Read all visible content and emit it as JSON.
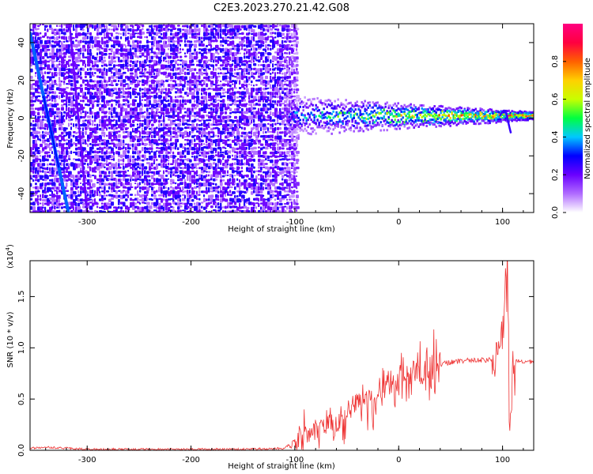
{
  "chart_data": [
    {
      "type": "heatmap",
      "title": "C2E3.2023.270.21.42.G08",
      "xlabel": "Height of straight line (km)",
      "ylabel": "Frequency (Hz)",
      "xlim": [
        -355,
        130
      ],
      "ylim": [
        -50,
        50
      ],
      "xticks": [
        -300,
        -200,
        -100,
        0,
        100
      ],
      "yticks": [
        -40,
        -20,
        0,
        20,
        40
      ],
      "grid": false,
      "colorbar": {
        "label": "Normalized spectral amplitude",
        "range": [
          0,
          1
        ],
        "ticks": [
          0.0,
          0.2,
          0.4,
          0.6,
          0.8
        ],
        "colormap": [
          "#ffffff",
          "#b06bff",
          "#6a00ff",
          "#0000ff",
          "#00c8ff",
          "#00ff40",
          "#c8ff00",
          "#ffd000",
          "#ff6000",
          "#ff0040",
          "#ff0080"
        ]
      },
      "features": [
        {
          "name": "noise_region",
          "x_range": [
            -355,
            -98
          ],
          "freq_range": [
            -50,
            50
          ],
          "amplitude": 0.2
        },
        {
          "name": "drift_line_1",
          "x": [
            -355,
            -318
          ],
          "freq": [
            45,
            -50
          ],
          "amplitude": 0.3
        },
        {
          "name": "drift_line_2",
          "x": [
            -317,
            -300
          ],
          "freq": [
            50,
            -50
          ],
          "amplitude": 0.15
        },
        {
          "name": "carrier",
          "x_range": [
            -108,
            130
          ],
          "freq": 1,
          "amplitude_start": 0.3,
          "amplitude_end": 0.85
        },
        {
          "name": "carrier_wiggle",
          "x": 102,
          "freq": [
            7,
            -8
          ]
        }
      ]
    },
    {
      "type": "line",
      "xlabel": "Height of straight line (km)",
      "ylabel": "SNR (10 * v/v)",
      "yscale_label": "(x10",
      "yscale_exp": "4",
      "yscale_suffix": ")",
      "xlim": [
        -355,
        130
      ],
      "ylim": [
        0,
        1.85
      ],
      "xticks": [
        -300,
        -200,
        -100,
        0,
        100
      ],
      "yticks": [
        0.0,
        0.5,
        1.0,
        1.5
      ],
      "grid": false,
      "series": [
        {
          "color": "#ee3333",
          "x": [
            -355,
            -340,
            -320,
            -300,
            -250,
            -200,
            -150,
            -110,
            -100,
            -90,
            -80,
            -70,
            -60,
            -50,
            -40,
            -30,
            -20,
            -10,
            0,
            10,
            20,
            30,
            40,
            50,
            60,
            70,
            80,
            90,
            95,
            100,
            103,
            105,
            107,
            110,
            115,
            120,
            130
          ],
          "y": [
            0.02,
            0.03,
            0.02,
            0.01,
            0.01,
            0.01,
            0.01,
            0.02,
            0.1,
            0.15,
            0.2,
            0.22,
            0.3,
            0.4,
            0.45,
            0.5,
            0.55,
            0.6,
            0.65,
            0.7,
            0.75,
            0.8,
            0.84,
            0.86,
            0.87,
            0.88,
            0.88,
            0.88,
            0.95,
            1.1,
            1.6,
            1.8,
            0.2,
            0.85,
            0.87,
            0.86,
            0.86
          ]
        }
      ]
    }
  ]
}
